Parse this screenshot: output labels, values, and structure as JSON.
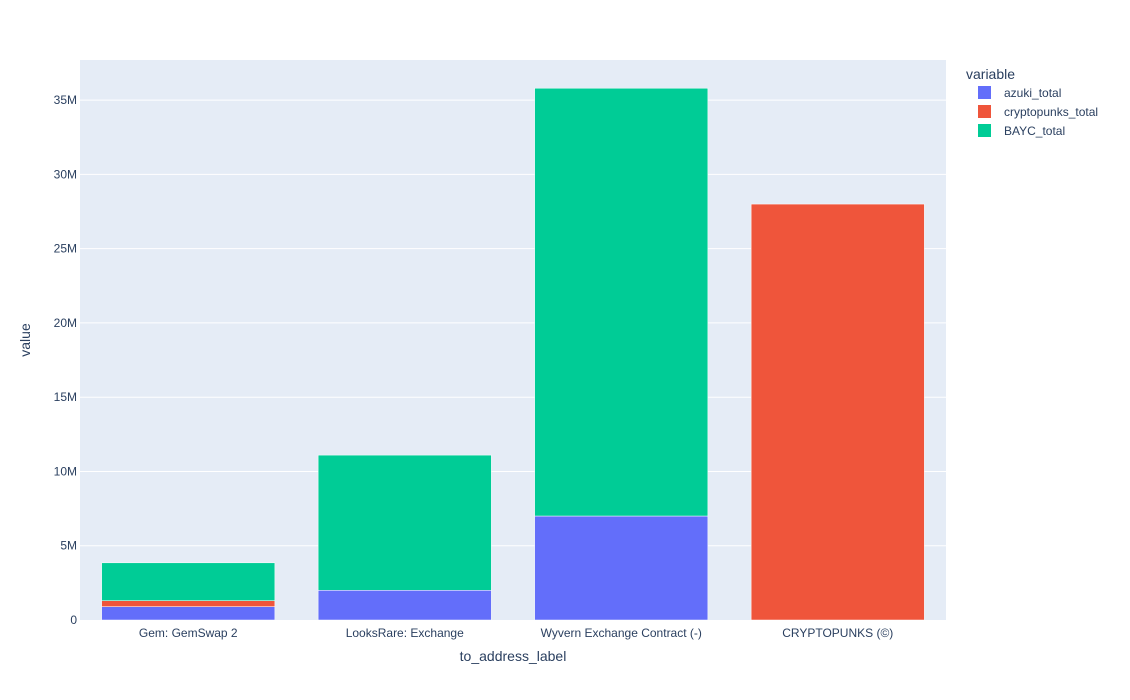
{
  "chart_data": {
    "type": "bar",
    "barmode": "stack",
    "categories": [
      "Gem: GemSwap 2",
      "LooksRare: Exchange",
      "Wyvern Exchange Contract (-)",
      "CRYPTOPUNKS (©)"
    ],
    "series": [
      {
        "name": "azuki_total",
        "color": "#636efa",
        "values": [
          900000,
          2000000,
          7000000,
          0
        ]
      },
      {
        "name": "cryptopunks_total",
        "color": "#ef553b",
        "values": [
          400000,
          0,
          0,
          28000000
        ]
      },
      {
        "name": "BAYC_total",
        "color": "#00cc96",
        "values": [
          2550000,
          9100000,
          28800000,
          0
        ]
      }
    ],
    "xlabel": "to_address_label",
    "ylabel": "value",
    "ylim": [
      0,
      37700000
    ],
    "yticks": [
      0,
      5000000,
      10000000,
      15000000,
      20000000,
      25000000,
      30000000,
      35000000
    ],
    "ytick_labels": [
      "0",
      "5M",
      "10M",
      "15M",
      "20M",
      "25M",
      "30M",
      "35M"
    ],
    "legend_title": "variable",
    "legend_position": "top-right",
    "grid": true,
    "plot_background": "#e5ecf6"
  }
}
